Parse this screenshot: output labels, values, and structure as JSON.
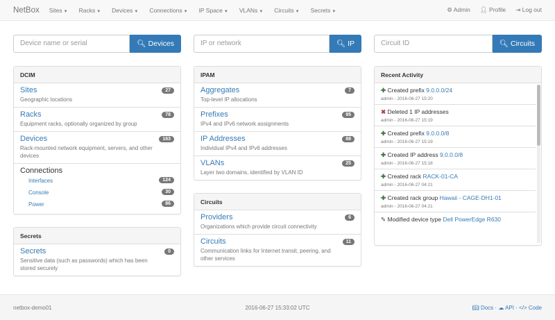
{
  "nav": {
    "brand": "NetBox",
    "menus": [
      "Sites",
      "Racks",
      "Devices",
      "Connections",
      "IP Space",
      "VLANs",
      "Circuits",
      "Secrets"
    ],
    "admin": "Admin",
    "profile": "Profile",
    "logout": "Log out"
  },
  "search": [
    {
      "placeholder": "Device name or serial",
      "button": "Devices"
    },
    {
      "placeholder": "IP or network",
      "button": "IP"
    },
    {
      "placeholder": "Circuit ID",
      "button": "Circuits"
    }
  ],
  "dcim": {
    "title": "DCIM",
    "items": [
      {
        "label": "Sites",
        "desc": "Geographic locations",
        "count": "27"
      },
      {
        "label": "Racks",
        "desc": "Equipment racks, optionally organized by group",
        "count": "78"
      },
      {
        "label": "Devices",
        "desc": "Rack-mounted network equipment, servers, and other devices",
        "count": "163"
      }
    ],
    "connections": {
      "label": "Connections",
      "items": [
        {
          "label": "Interfaces",
          "count": "124"
        },
        {
          "label": "Console",
          "count": "30"
        },
        {
          "label": "Power",
          "count": "86"
        }
      ]
    }
  },
  "secrets": {
    "title": "Secrets",
    "items": [
      {
        "label": "Secrets",
        "desc": "Sensitive data (such as passwords) which has been stored securely",
        "count": "0"
      }
    ]
  },
  "ipam": {
    "title": "IPAM",
    "items": [
      {
        "label": "Aggregates",
        "desc": "Top-level IP allocations",
        "count": "7"
      },
      {
        "label": "Prefixes",
        "desc": "IPv4 and IPv6 network assignments",
        "count": "95"
      },
      {
        "label": "IP Addresses",
        "desc": "Individual IPv4 and IPv6 addresses",
        "count": "88"
      },
      {
        "label": "VLANs",
        "desc": "Layer two domains, identified by VLAN ID",
        "count": "25"
      }
    ]
  },
  "circuits": {
    "title": "Circuits",
    "items": [
      {
        "label": "Providers",
        "desc": "Organizations which provide circuit connectivity",
        "count": "6"
      },
      {
        "label": "Circuits",
        "desc": "Communication links for Internet transit, peering, and other services",
        "count": "11"
      }
    ]
  },
  "activity": {
    "title": "Recent Activity",
    "items": [
      {
        "icon": "plus",
        "text": "Created prefix",
        "link": "9.0.0.0/24",
        "meta": "admin - 2016-06-27 15:20"
      },
      {
        "icon": "x",
        "text": "Deleted 1 IP addresses",
        "link": "",
        "meta": "admin - 2016-06-27 15:19"
      },
      {
        "icon": "plus",
        "text": "Created prefix",
        "link": "9.0.0.0/8",
        "meta": "admin - 2016-06-27 15:19"
      },
      {
        "icon": "plus",
        "text": "Created IP address",
        "link": "9.0.0.0/8",
        "meta": "admin - 2016-06-27 15:18"
      },
      {
        "icon": "plus",
        "text": "Created rack",
        "link": "RACK-01-CA",
        "meta": "admin - 2016-06-27 04:21"
      },
      {
        "icon": "plus",
        "text": "Created rack group",
        "link": "Hawaii - CAGE-DH1-01",
        "meta": "admin - 2016-06-27 04:21"
      },
      {
        "icon": "pencil",
        "text": "Modified device type",
        "link": "Dell PowerEdge R630",
        "meta": ""
      }
    ]
  },
  "footer": {
    "host": "netbox-demo01",
    "time": "2016-06-27 15:33:02 UTC",
    "docs": "Docs",
    "api": "API",
    "code": "Code"
  }
}
